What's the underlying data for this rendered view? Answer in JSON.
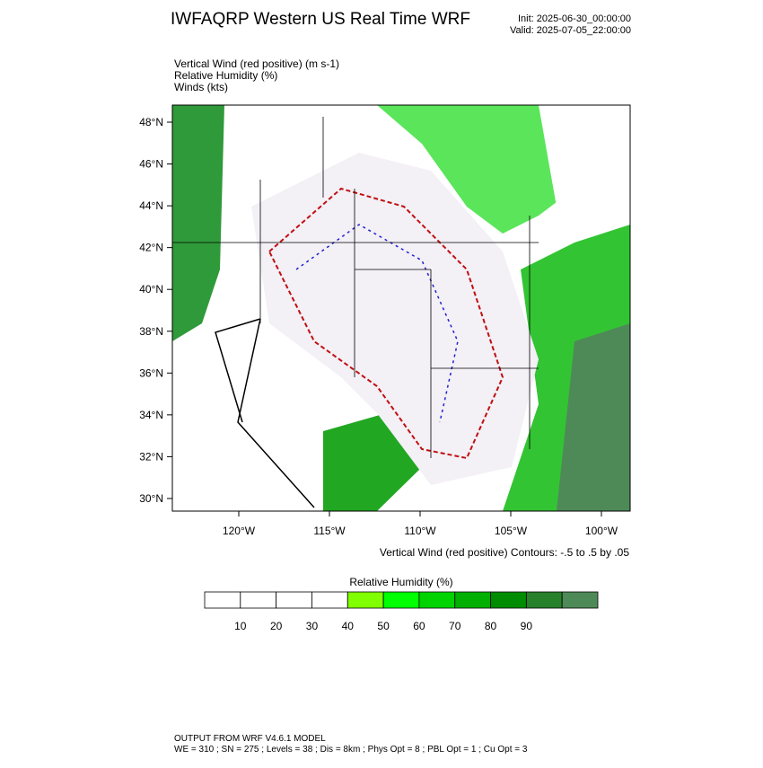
{
  "header": {
    "title": "IWFAQRP Western US Real Time WRF",
    "init": "Init: 2025-06-30_00:00:00",
    "valid": "Valid: 2025-07-05_22:00:00"
  },
  "fields": [
    "Vertical Wind (red positive)   (m s-1)",
    "Relative Humidity   (%)",
    "Winds   (kts)"
  ],
  "map": {
    "lat_labels": [
      "48°N",
      "46°N",
      "44°N",
      "42°N",
      "40°N",
      "38°N",
      "36°N",
      "34°N",
      "32°N",
      "30°N"
    ],
    "lon_labels": [
      "120°W",
      "115°W",
      "110°W",
      "105°W",
      "100°W"
    ],
    "contour_note": "Vertical Wind (red positive) Contours: -.5 to .5 by .05"
  },
  "colorbar": {
    "title": "Relative Humidity   (%)",
    "labels": [
      "10",
      "20",
      "30",
      "40",
      "50",
      "60",
      "70",
      "80",
      "90"
    ],
    "colors": [
      "#ffffff",
      "#ffffff",
      "#ffffff",
      "#ffffff",
      "#80ff00",
      "#00ff00",
      "#00d400",
      "#00b000",
      "#008c00",
      "#27802a",
      "#4e8a58"
    ]
  },
  "footer": [
    "OUTPUT FROM WRF V4.6.1 MODEL",
    "WE = 310 ; SN = 275 ; Levels = 38 ; Dis = 8km ; Phys Opt = 8 ; PBL Opt = 1 ; Cu Opt = 3"
  ]
}
